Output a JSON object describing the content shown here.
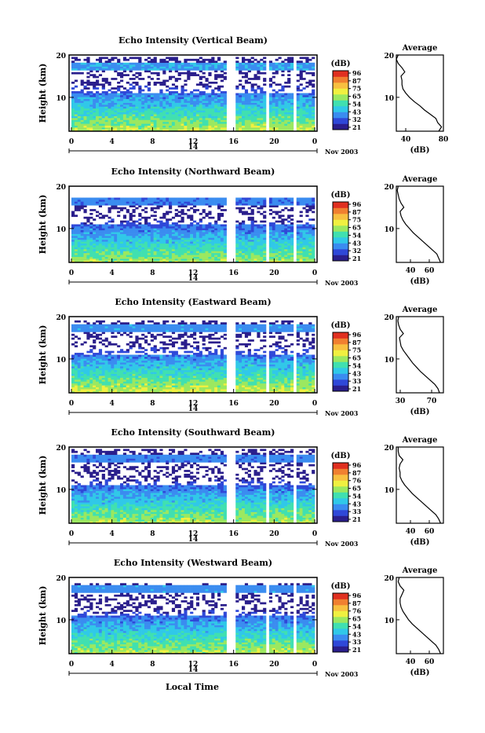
{
  "chart_data": [
    {
      "type": "heatmap",
      "title": "Echo Intensity (Vertical Beam)",
      "ylabel": "Height (km)",
      "xlim": [
        0,
        24
      ],
      "ylim": [
        2,
        20
      ],
      "x_ticks": [
        "0",
        "4",
        "8",
        "12",
        "16",
        "20",
        "0"
      ],
      "y_ticks": [
        "20",
        "10"
      ],
      "date_day": "14",
      "date_month_year": "Nov 2003",
      "colorbar_label": "(dB)",
      "colorbar_ticks": [
        "96",
        "87",
        "75",
        "65",
        "54",
        "43",
        "32",
        "21"
      ],
      "data_gaps_hours": [
        15.4,
        15.9,
        19.3,
        22.1
      ],
      "avg_title": "Average",
      "avg_xlabel": "(dB)",
      "avg_xlim": [
        30,
        80
      ],
      "avg_x_ticks": [
        "40",
        "80"
      ],
      "avg_y_ticks": [
        "20",
        "10"
      ],
      "avg_profile": {
        "height_km": [
          2,
          3,
          4,
          5,
          6,
          7,
          8,
          9,
          10,
          11,
          12,
          13,
          14,
          15,
          16,
          17,
          18,
          19,
          20
        ],
        "db": [
          75,
          78,
          74,
          72,
          66,
          60,
          55,
          49,
          44,
          40,
          37,
          36,
          36,
          35,
          39,
          36,
          32,
          30,
          32
        ]
      },
      "intensity": {
        "low_db": 66,
        "decay_height_km": 3.2,
        "upper_layer_km": 17.5,
        "upper_layer_db": 42,
        "cutoff_km": 19.5
      }
    },
    {
      "type": "heatmap",
      "title": "Echo Intensity (Northward Beam)",
      "ylabel": "Height (km)",
      "xlim": [
        0,
        24
      ],
      "ylim": [
        2,
        20
      ],
      "x_ticks": [
        "0",
        "4",
        "8",
        "12",
        "16",
        "20",
        "0"
      ],
      "y_ticks": [
        "20",
        "10"
      ],
      "date_day": "14",
      "date_month_year": "Nov 2003",
      "colorbar_label": "(dB)",
      "colorbar_ticks": [
        "96",
        "87",
        "75",
        "65",
        "54",
        "43",
        "32",
        "21"
      ],
      "data_gaps_hours": [
        15.4,
        15.9,
        19.3,
        22.1
      ],
      "avg_title": "Average",
      "avg_xlabel": "(dB)",
      "avg_xlim": [
        25,
        75
      ],
      "avg_x_ticks": [
        "40",
        "60"
      ],
      "avg_y_ticks": [
        "20",
        "10"
      ],
      "avg_profile": {
        "height_km": [
          2,
          3,
          4,
          5,
          6,
          7,
          8,
          9,
          10,
          11,
          12,
          13,
          14,
          15,
          16,
          17,
          18,
          19,
          20
        ],
        "db": [
          72,
          70,
          68,
          63,
          58,
          53,
          48,
          43,
          39,
          35,
          32,
          30,
          29,
          33,
          30,
          28,
          27,
          26,
          27
        ]
      },
      "intensity": {
        "low_db": 64,
        "decay_height_km": 3.3,
        "upper_layer_km": 16.5,
        "upper_layer_db": 38,
        "cutoff_km": 17.5
      }
    },
    {
      "type": "heatmap",
      "title": "Echo Intensity (Eastward Beam)",
      "ylabel": "Height (km)",
      "xlim": [
        0,
        24
      ],
      "ylim": [
        2,
        20
      ],
      "x_ticks": [
        "0",
        "4",
        "8",
        "12",
        "16",
        "20",
        "0"
      ],
      "y_ticks": [
        "20",
        "10"
      ],
      "date_day": "14",
      "date_month_year": "Nov 2003",
      "colorbar_label": "(dB)",
      "colorbar_ticks": [
        "96",
        "87",
        "75",
        "65",
        "54",
        "43",
        "33",
        "21"
      ],
      "data_gaps_hours": [
        15.4,
        15.9,
        19.3,
        22.1
      ],
      "avg_title": "Average",
      "avg_xlabel": "(dB)",
      "avg_xlim": [
        25,
        85
      ],
      "avg_x_ticks": [
        "30",
        "70"
      ],
      "avg_y_ticks": [
        "20",
        "10"
      ],
      "avg_profile": {
        "height_km": [
          2,
          3,
          4,
          5,
          6,
          7,
          8,
          9,
          10,
          11,
          12,
          13,
          14,
          15,
          16,
          17,
          18,
          19,
          20
        ],
        "db": [
          80,
          78,
          74,
          68,
          62,
          56,
          51,
          46,
          42,
          38,
          34,
          31,
          30,
          29,
          34,
          30,
          28,
          27,
          28
        ]
      },
      "intensity": {
        "low_db": 68,
        "decay_height_km": 3.4,
        "upper_layer_km": 17.2,
        "upper_layer_db": 40,
        "cutoff_km": 19
      }
    },
    {
      "type": "heatmap",
      "title": "Echo Intensity (Southward Beam)",
      "ylabel": "Height (km)",
      "xlim": [
        0,
        24
      ],
      "ylim": [
        2,
        20
      ],
      "x_ticks": [
        "0",
        "4",
        "8",
        "12",
        "16",
        "20",
        "0"
      ],
      "y_ticks": [
        "20",
        "10"
      ],
      "date_day": "14",
      "date_month_year": "Nov 2003",
      "colorbar_label": "(dB)",
      "colorbar_ticks": [
        "96",
        "87",
        "76",
        "65",
        "54",
        "43",
        "33",
        "21"
      ],
      "data_gaps_hours": [
        15.4,
        15.9,
        19.3,
        22.1
      ],
      "avg_title": "Average",
      "avg_xlabel": "(dB)",
      "avg_xlim": [
        25,
        75
      ],
      "avg_x_ticks": [
        "40",
        "60"
      ],
      "avg_y_ticks": [
        "20",
        "10"
      ],
      "avg_profile": {
        "height_km": [
          2,
          3,
          4,
          5,
          6,
          7,
          8,
          9,
          10,
          11,
          12,
          13,
          14,
          15,
          16,
          17,
          18,
          19,
          20
        ],
        "db": [
          72,
          70,
          67,
          62,
          57,
          52,
          47,
          42,
          38,
          34,
          31,
          29,
          29,
          28,
          29,
          32,
          28,
          27,
          27
        ]
      },
      "intensity": {
        "low_db": 65,
        "decay_height_km": 3.3,
        "upper_layer_km": 17.5,
        "upper_layer_db": 39,
        "cutoff_km": 19.5
      }
    },
    {
      "type": "heatmap",
      "title": "Echo Intensity (Westward Beam)",
      "ylabel": "Height (km)",
      "xlim": [
        0,
        24
      ],
      "ylim": [
        2,
        20
      ],
      "x_ticks": [
        "0",
        "4",
        "8",
        "12",
        "16",
        "20",
        "0"
      ],
      "y_ticks": [
        "20",
        "10"
      ],
      "date_day": "14",
      "date_month_year": "Nov 2003",
      "colorbar_label": "(dB)",
      "colorbar_ticks": [
        "96",
        "87",
        "76",
        "65",
        "54",
        "43",
        "33",
        "21"
      ],
      "data_gaps_hours": [
        15.4,
        15.9,
        19.3,
        22.1
      ],
      "avg_title": "Average",
      "avg_xlabel": "(dB)",
      "avg_xlim": [
        25,
        75
      ],
      "avg_x_ticks": [
        "40",
        "60"
      ],
      "avg_y_ticks": [
        "20",
        "10"
      ],
      "avg_profile": {
        "height_km": [
          2,
          3,
          4,
          5,
          6,
          7,
          8,
          9,
          10,
          11,
          12,
          13,
          14,
          15,
          16,
          17,
          18,
          19,
          20
        ],
        "db": [
          72,
          70,
          67,
          62,
          57,
          52,
          47,
          42,
          38,
          35,
          32,
          30,
          29,
          29,
          31,
          33,
          29,
          27,
          28
        ]
      },
      "intensity": {
        "low_db": 65,
        "decay_height_km": 3.3,
        "upper_layer_km": 17.5,
        "upper_layer_db": 40,
        "cutoff_km": 18.5
      }
    }
  ],
  "xlabel": "Local Time",
  "colormap": [
    "#2a1e8c",
    "#2f48d8",
    "#3a8cf0",
    "#30c8e8",
    "#40e0b0",
    "#9be860",
    "#f0f040",
    "#f8c040",
    "#f08030",
    "#e03020"
  ]
}
